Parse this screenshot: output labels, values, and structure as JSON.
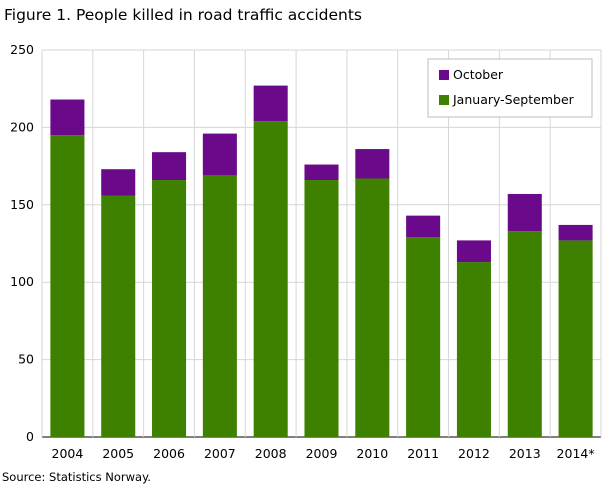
{
  "chart_data": {
    "type": "bar",
    "stacked": true,
    "title": "Figure 1. People killed in road traffic accidents",
    "source": "Source: Statistics Norway.",
    "categories": [
      "2004",
      "2005",
      "2006",
      "2007",
      "2008",
      "2009",
      "2010",
      "2011",
      "2012",
      "2013",
      "2014*"
    ],
    "series": [
      {
        "name": "January-September",
        "color": "#3e8100",
        "values": [
          195,
          156,
          166,
          169,
          204,
          166,
          167,
          129,
          113,
          133,
          127
        ]
      },
      {
        "name": "October",
        "color": "#6a0a8a",
        "values": [
          23,
          17,
          18,
          27,
          23,
          10,
          19,
          14,
          14,
          24,
          10
        ]
      }
    ],
    "legend_order": [
      "October",
      "January-September"
    ],
    "legend_position": "top-right",
    "ylim": [
      0,
      250
    ],
    "yticks": [
      0,
      50,
      100,
      150,
      200,
      250
    ],
    "grid": true,
    "xlabel": "",
    "ylabel": ""
  }
}
